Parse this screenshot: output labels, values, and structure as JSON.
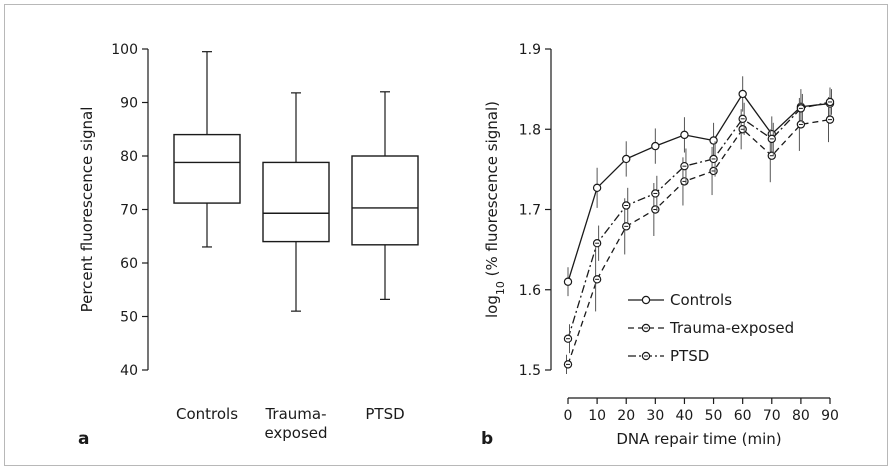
{
  "panels": {
    "a": {
      "letter": "a"
    },
    "b": {
      "letter": "b"
    }
  },
  "chart_data": [
    {
      "type": "box",
      "panel": "a",
      "title": "",
      "xlabel": "",
      "ylabel": "Percent fluorescence signal",
      "ylim": [
        40,
        100
      ],
      "yticks": [
        "40",
        "50",
        "60",
        "70",
        "80",
        "90",
        "100"
      ],
      "categories": [
        {
          "lines": [
            "Controls"
          ]
        },
        {
          "lines": [
            "Trauma-",
            "exposed"
          ]
        },
        {
          "lines": [
            "PTSD"
          ]
        }
      ],
      "boxes": [
        {
          "min": 63,
          "q1": 71.2,
          "median": 78.8,
          "q3": 84,
          "max": 99.5
        },
        {
          "min": 51,
          "q1": 64,
          "median": 69.3,
          "q3": 78.8,
          "max": 91.8
        },
        {
          "min": 53.2,
          "q1": 63.4,
          "median": 70.3,
          "q3": 80,
          "max": 92
        }
      ],
      "grid": false,
      "colors": {
        "line": "#1a1a1a"
      }
    },
    {
      "type": "line",
      "panel": "b",
      "title": "",
      "xlabel": "DNA repair time (min)",
      "ylabel_parts": {
        "pre": "log",
        "sub": "10",
        "post": " (% fluorescence signal)"
      },
      "x": [
        0,
        10,
        20,
        30,
        40,
        50,
        60,
        70,
        80,
        90
      ],
      "xticks": [
        "0",
        "10",
        "20",
        "30",
        "40",
        "50",
        "60",
        "70",
        "80",
        "90"
      ],
      "xlim": [
        0,
        90
      ],
      "ylim": [
        1.5,
        1.9
      ],
      "yticks": [
        "1.5",
        "1.6",
        "1.7",
        "1.8",
        "1.9"
      ],
      "series": [
        {
          "name": "Controls",
          "dash": "solid",
          "values": [
            1.61,
            1.727,
            1.763,
            1.779,
            1.793,
            1.786,
            1.844,
            1.794,
            1.828,
            1.832
          ],
          "err": [
            0.018,
            0.025,
            0.022,
            0.022,
            0.022,
            0.022,
            0.022,
            0.022,
            0.022,
            0.02
          ]
        },
        {
          "name": "Trauma-exposed",
          "dash": "dashed",
          "values": [
            1.507,
            1.613,
            1.679,
            1.7,
            1.735,
            1.748,
            1.8,
            1.767,
            1.806,
            1.812
          ],
          "err": [
            0.012,
            0.04,
            0.035,
            0.033,
            0.03,
            0.03,
            0.025,
            0.033,
            0.033,
            0.028
          ]
        },
        {
          "name": "PTSD",
          "dash": "dashdot",
          "values": [
            1.539,
            1.658,
            1.705,
            1.72,
            1.754,
            1.763,
            1.813,
            1.788,
            1.826,
            1.834
          ],
          "err": [
            0.018,
            0.022,
            0.022,
            0.022,
            0.022,
            0.022,
            0.02,
            0.02,
            0.018,
            0.016
          ]
        }
      ],
      "legend": "bottom-right",
      "grid": false,
      "colors": {
        "line": "#1a1a1a"
      }
    }
  ]
}
